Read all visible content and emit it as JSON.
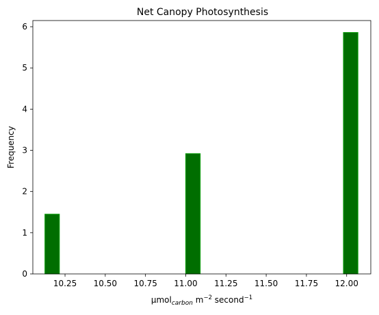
{
  "chart_data": {
    "type": "bar",
    "title": "Net Canopy Photosynthesis",
    "xlabel": {
      "base": "µmol",
      "subscript": "carbon",
      "middle": " m",
      "sup1": "−2",
      "tail": " second",
      "sup2": "−1"
    },
    "ylabel": "Frequency",
    "xlim": [
      10.05,
      12.15
    ],
    "ylim": [
      0,
      6.15
    ],
    "x_ticks": [
      10.25,
      10.5,
      10.75,
      11.0,
      11.25,
      11.5,
      11.75,
      12.0
    ],
    "x_tick_labels": [
      "10.25",
      "10.50",
      "10.75",
      "11.00",
      "11.25",
      "11.50",
      "11.75",
      "12.00"
    ],
    "y_ticks": [
      0,
      1,
      2,
      3,
      4,
      5,
      6
    ],
    "y_tick_labels": [
      "0",
      "1",
      "2",
      "3",
      "4",
      "5",
      "6"
    ],
    "bars": [
      {
        "x0": 10.125,
        "x1": 10.215,
        "value": 1.45
      },
      {
        "x0": 11.0,
        "x1": 11.09,
        "value": 2.92
      },
      {
        "x0": 11.98,
        "x1": 12.07,
        "value": 5.86
      }
    ],
    "bar_color": "#006e00",
    "bar_edge_color": "#009900",
    "grid": false,
    "legend": "none"
  }
}
